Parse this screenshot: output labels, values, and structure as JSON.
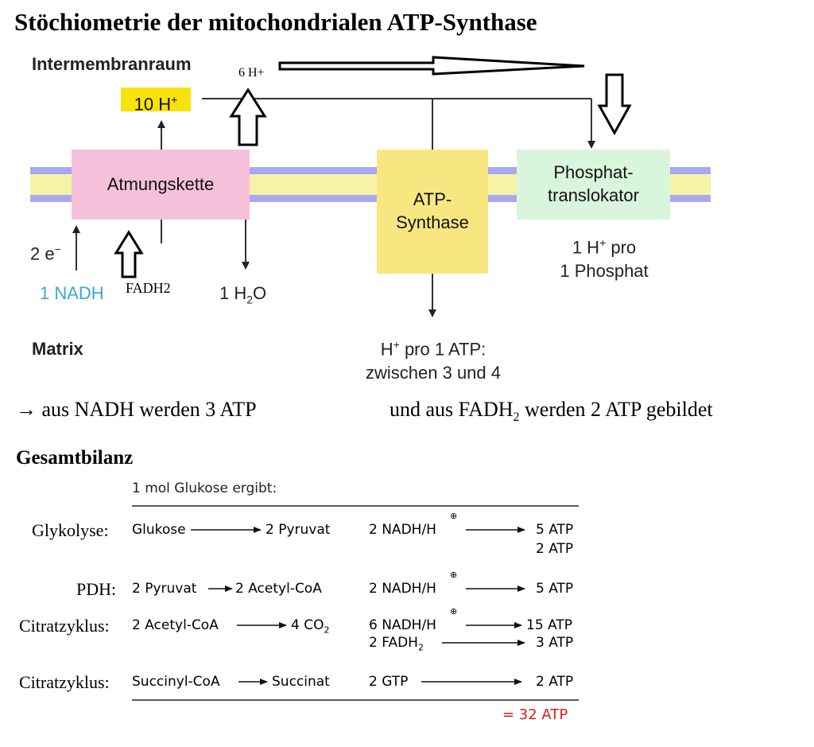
{
  "title": "Stöchiometrie der mitochondrialen ATP-Synthase",
  "diagram": {
    "intermembrane_label": "Intermembranraum",
    "matrix_label": "Matrix",
    "h_plus_6": "6 H+",
    "h_plus_10": {
      "main": "10 H",
      "sup": "+"
    },
    "atmungskette": "Atmungskette",
    "atp_synthase": [
      "ATP-",
      "Synthase"
    ],
    "phosphat_translokator": [
      "Phosphat-",
      "translokator"
    ],
    "electrons": {
      "main": "2 e",
      "sup": "−"
    },
    "nadh": "1 NADH",
    "fadh2": "FADH2",
    "water": {
      "a": "1 H",
      "sub": "2",
      "b": "O"
    },
    "h_per_phosphate": [
      "1 H",
      "+",
      " pro",
      "1 Phosphat"
    ],
    "h_per_atp": {
      "a": "H",
      "sup": "+",
      "b": " pro 1 ATP:",
      "line2": "zwischen 3 und 4"
    },
    "colors": {
      "membrane_outer": "#aaa8ee",
      "membrane_inner": "#f6f3a6",
      "atmungskette": "#f5c1da",
      "synthase": "#f8e781",
      "translokator": "#d9f5dc",
      "label_10h": "#f8e20d",
      "nadh": "#37a8d8"
    }
  },
  "statement": {
    "arrow": "→",
    "left": "aus NADH werden 3 ATP",
    "right_a": "und aus FADH",
    "right_sub": "2",
    "right_b": " werden 2 ATP gebildet"
  },
  "gesamtbilanz": {
    "heading": "Gesamtbilanz",
    "subtitle": "1 mol Glukose ergibt:",
    "rows": [
      {
        "stage": "Glykolyse:",
        "from": "Glukose",
        "to": "2 Pyruvat",
        "carrier": "2 NADH/H",
        "atp": "5 ATP",
        "atp2": "2 ATP"
      },
      {
        "stage": "PDH:",
        "from": "2 Pyruvat",
        "to": "2 Acetyl-CoA",
        "carrier": "2 NADH/H",
        "atp": "5 ATP"
      },
      {
        "stage": "Citratzyklus:",
        "from": "2 Acetyl-CoA",
        "to": "4 CO",
        "to_sub": "2",
        "carrier": "6 NADH/H",
        "atp": "15 ATP",
        "carrier2": "2 FADH",
        "carrier2_sub": "2",
        "atp2": "3 ATP"
      },
      {
        "stage": "Citratzyklus:",
        "from": "Succinyl-CoA",
        "to": "Succinat",
        "carrier": "2 GTP",
        "atp": "2 ATP"
      }
    ],
    "plus_symbol": "⊕",
    "total": "= 32 ATP",
    "total_color": "#e01b1b"
  }
}
